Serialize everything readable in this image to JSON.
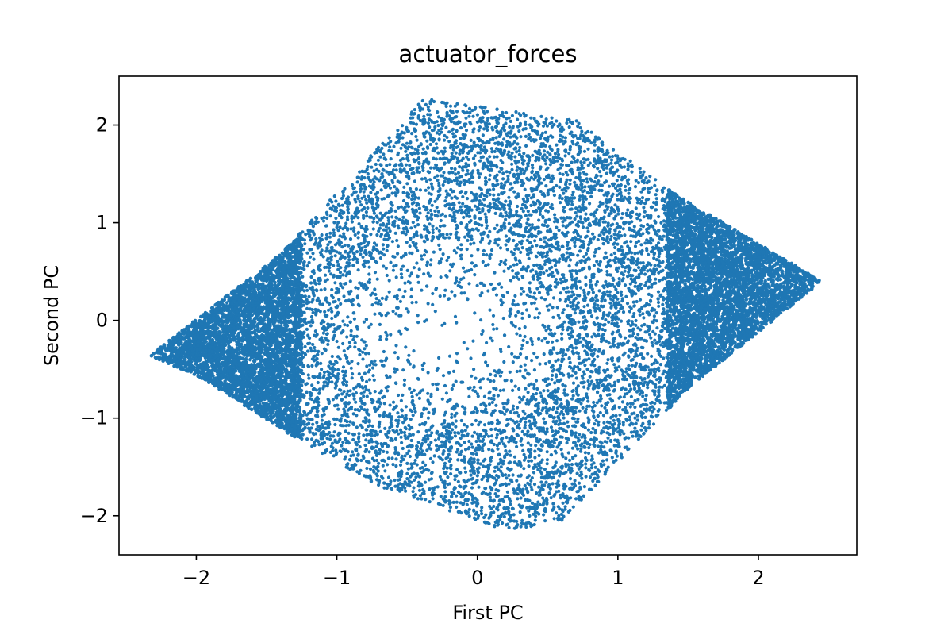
{
  "chart_data": {
    "type": "scatter",
    "title": "actuator_forces",
    "xlabel": "First PC",
    "ylabel": "Second PC",
    "xlim": [
      -2.55,
      2.7
    ],
    "ylim": [
      -2.4,
      2.5
    ],
    "x_ticks": [
      -2,
      -1,
      0,
      1,
      2
    ],
    "y_ticks": [
      -2,
      -1,
      0,
      1,
      2
    ],
    "x_tick_labels": [
      "−2",
      "−1",
      "0",
      "1",
      "2"
    ],
    "y_tick_labels": [
      "−2",
      "−1",
      "0",
      "1",
      "2"
    ],
    "grid": false,
    "legend": "none",
    "marker_color": "#1f77b4",
    "point_count_approx": 60000,
    "shape": "rhombus-shaped cloud with a sparse region near the center",
    "series": [
      {
        "points_outline": [
          {
            "x": -2.33,
            "y": -0.36
          },
          {
            "x": -1.4,
            "y": 0.68
          },
          {
            "x": -0.38,
            "y": 2.28
          },
          {
            "x": 0.7,
            "y": 2.05
          },
          {
            "x": 1.4,
            "y": 1.3
          },
          {
            "x": 2.45,
            "y": 0.4
          },
          {
            "x": 1.5,
            "y": -0.7
          },
          {
            "x": 0.6,
            "y": -2.05
          },
          {
            "x": 0.22,
            "y": -2.16
          },
          {
            "x": -0.7,
            "y": -1.7
          },
          {
            "x": -1.3,
            "y": -1.2
          },
          {
            "x": -1.95,
            "y": -0.6
          }
        ],
        "sparse_center": {
          "x": -0.2,
          "y": -0.1
        }
      }
    ]
  }
}
